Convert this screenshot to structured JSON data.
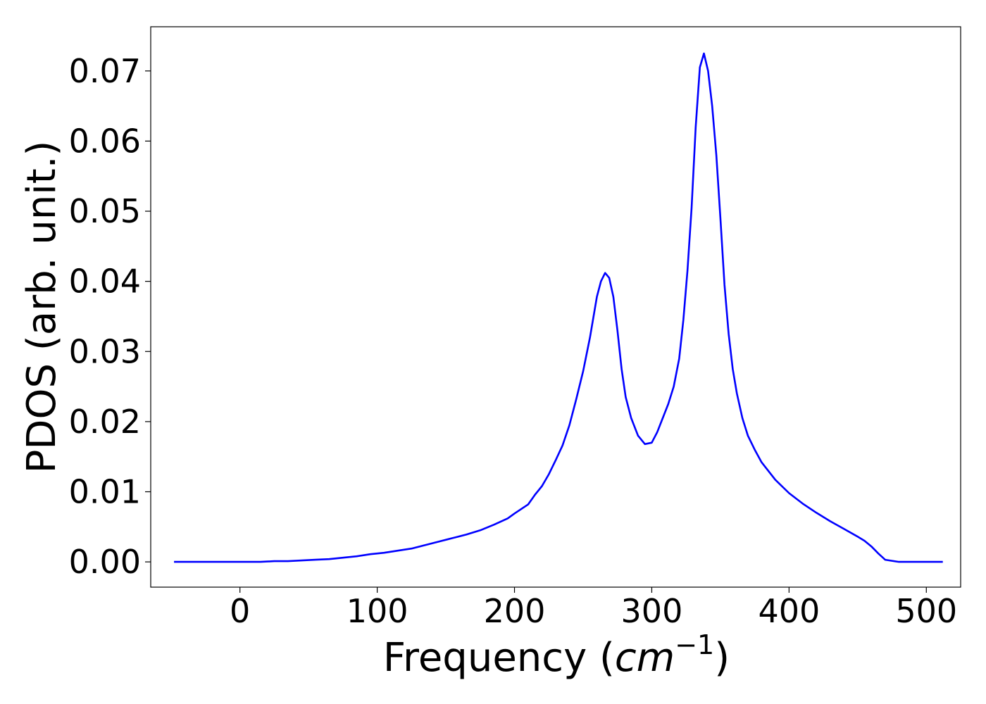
{
  "chart_data": {
    "type": "line",
    "title": "",
    "xlabel_text": "Frequency (",
    "xlabel_math_base": "cm",
    "xlabel_math_sup": "−1",
    "xlabel_close": ")",
    "ylabel": "PDOS (arb. unit.)",
    "xlim": [
      -65,
      525
    ],
    "ylim": [
      -0.0036,
      0.0763
    ],
    "xticks": [
      0,
      100,
      200,
      300,
      400,
      500
    ],
    "xtick_labels": [
      "0",
      "100",
      "200",
      "300",
      "400",
      "500"
    ],
    "yticks": [
      0.0,
      0.01,
      0.02,
      0.03,
      0.04,
      0.05,
      0.06,
      0.07
    ],
    "ytick_labels": [
      "0.00",
      "0.01",
      "0.02",
      "0.03",
      "0.04",
      "0.05",
      "0.06",
      "0.07"
    ],
    "grid": false,
    "line_color": "#0000ff",
    "series": [
      {
        "x": [
          -48,
          -20,
          0,
          15,
          25,
          35,
          45,
          55,
          65,
          75,
          85,
          95,
          105,
          115,
          125,
          135,
          145,
          155,
          165,
          175,
          185,
          195,
          200,
          210,
          215,
          220,
          225,
          230,
          235,
          240,
          245,
          250,
          255,
          260,
          263,
          266,
          269,
          272,
          275,
          278,
          281,
          285,
          290,
          295,
          300,
          304,
          308,
          312,
          316,
          320,
          323,
          326,
          329,
          332,
          335,
          338,
          341,
          344,
          347,
          350,
          353,
          356,
          359,
          362,
          366,
          370,
          375,
          380,
          390,
          400,
          410,
          420,
          430,
          440,
          450,
          455,
          460,
          465,
          470,
          480,
          495,
          512
        ],
        "y": [
          0.0,
          0.0,
          0.0,
          0.0,
          0.0001,
          0.0001,
          0.0002,
          0.0003,
          0.0004,
          0.0006,
          0.0008,
          0.0011,
          0.0013,
          0.0016,
          0.0019,
          0.0024,
          0.0029,
          0.0034,
          0.0039,
          0.0045,
          0.0053,
          0.0062,
          0.0069,
          0.0082,
          0.0096,
          0.0108,
          0.0125,
          0.0145,
          0.0166,
          0.0195,
          0.0232,
          0.0272,
          0.032,
          0.0378,
          0.04,
          0.0412,
          0.0405,
          0.0378,
          0.033,
          0.0275,
          0.0235,
          0.0205,
          0.018,
          0.0168,
          0.017,
          0.0185,
          0.0205,
          0.0225,
          0.025,
          0.029,
          0.0345,
          0.0415,
          0.0505,
          0.062,
          0.0705,
          0.0725,
          0.07,
          0.065,
          0.058,
          0.049,
          0.0395,
          0.0325,
          0.0275,
          0.024,
          0.0205,
          0.018,
          0.016,
          0.0142,
          0.0117,
          0.0098,
          0.0083,
          0.007,
          0.0058,
          0.0047,
          0.0036,
          0.003,
          0.0022,
          0.0012,
          0.0003,
          0.0,
          0.0,
          0.0
        ]
      }
    ]
  }
}
